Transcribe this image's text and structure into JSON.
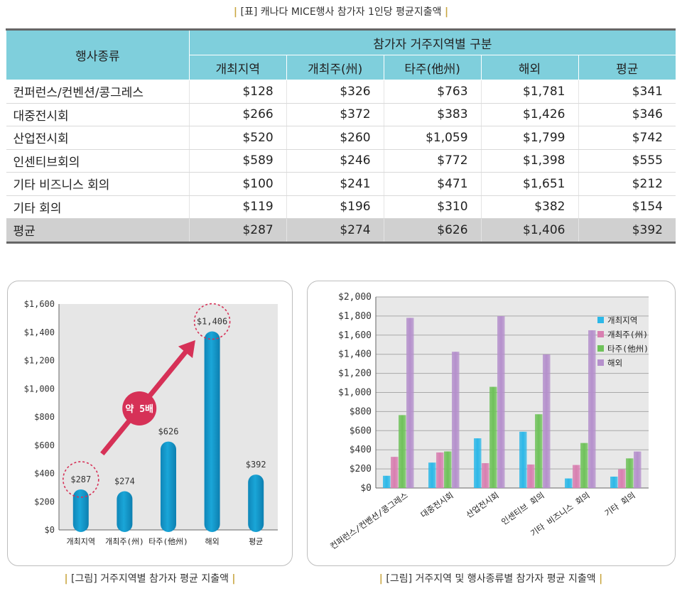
{
  "table_caption": {
    "bar_left": "|",
    "text": "[표] 캐나다 MICE행사 참가자 1인당 평균지출액",
    "bar_right": "|"
  },
  "table": {
    "head_group": "참가자 거주지역별 구분",
    "row_header": "행사종류",
    "columns": [
      "개최지역",
      "개최주(州)",
      "타주(他州)",
      "해외",
      "평균"
    ],
    "rows": [
      {
        "label": "컨퍼런스/컨벤션/콩그레스",
        "values": [
          "$128",
          "$326",
          "$763",
          "$1,781",
          "$341"
        ]
      },
      {
        "label": "대중전시회",
        "values": [
          "$266",
          "$372",
          "$383",
          "$1,426",
          "$346"
        ]
      },
      {
        "label": "산업전시회",
        "values": [
          "$520",
          "$260",
          "$1,059",
          "$1,799",
          "$742"
        ]
      },
      {
        "label": "인센티브회의",
        "values": [
          "$589",
          "$246",
          "$772",
          "$1,398",
          "$555"
        ]
      },
      {
        "label": "기타 비즈니스 회의",
        "values": [
          "$100",
          "$241",
          "$471",
          "$1,651",
          "$212"
        ]
      },
      {
        "label": "기타 회의",
        "values": [
          "$119",
          "$196",
          "$310",
          "$382",
          "$154"
        ]
      }
    ],
    "avg_row": {
      "label": "평균",
      "values": [
        "$287",
        "$274",
        "$626",
        "$1,406",
        "$392"
      ]
    }
  },
  "chart_data": [
    {
      "type": "bar",
      "categories": [
        "개최지역",
        "개최주(州)",
        "타주(他州)",
        "해외",
        "평균"
      ],
      "values": [
        287,
        274,
        626,
        1406,
        392
      ],
      "data_labels": [
        "$287",
        "$274",
        "$626",
        "$1,406",
        "$392"
      ],
      "ylim": [
        0,
        1600
      ],
      "yticks": [
        0,
        200,
        400,
        600,
        800,
        1000,
        1200,
        1400,
        1600
      ],
      "ytick_labels": [
        "$0",
        "$200",
        "$400",
        "$600",
        "$800",
        "$1,000",
        "$1,200",
        "$1,400",
        "$1,600"
      ],
      "annotation": "약 5배",
      "colors": {
        "bar": "#1aa6d8",
        "plot_bg": "#e6e6e6",
        "arrow": "#d63157",
        "circle": "#d63157"
      },
      "grid": false
    },
    {
      "type": "bar",
      "categories": [
        "컨퍼런스/컨벤션/콩그레스",
        "대중전시회",
        "산업전시회",
        "인센티브 회의",
        "기타 비즈니스 회의",
        "기타 회의"
      ],
      "series": [
        {
          "name": "개최지역",
          "values": [
            128,
            266,
            520,
            589,
            100,
            119
          ],
          "color": "#2cb8e8"
        },
        {
          "name": "개최주(州)",
          "values": [
            326,
            372,
            260,
            246,
            241,
            196
          ],
          "color": "#d87fb0"
        },
        {
          "name": "타주(他州)",
          "values": [
            763,
            383,
            1059,
            772,
            471,
            310
          ],
          "color": "#6fc25a"
        },
        {
          "name": "해외",
          "values": [
            1781,
            1426,
            1799,
            1398,
            1651,
            382
          ],
          "color": "#b590cc"
        }
      ],
      "ylim": [
        0,
        2000
      ],
      "yticks": [
        0,
        200,
        400,
        600,
        800,
        1000,
        1200,
        1400,
        1600,
        1800,
        2000
      ],
      "ytick_labels": [
        "$0",
        "$200",
        "$400",
        "$600",
        "$800",
        "$1,000",
        "$1,200",
        "$1,400",
        "$1,600",
        "$1,800",
        "$2,000"
      ],
      "legend": "top-right",
      "grid": true,
      "colors": {
        "plot_bg": "#e8e8e8",
        "grid": "#a8a8a8"
      }
    }
  ],
  "fig1_caption": {
    "bar_left": "|",
    "text": "[그림] 거주지역별 참가자 평균 지출액",
    "bar_right": "|"
  },
  "fig2_caption": {
    "bar_left": "|",
    "text": "[그림] 거주지역 및 행사종류별 참가자 평균 지출액",
    "bar_right": "|"
  }
}
